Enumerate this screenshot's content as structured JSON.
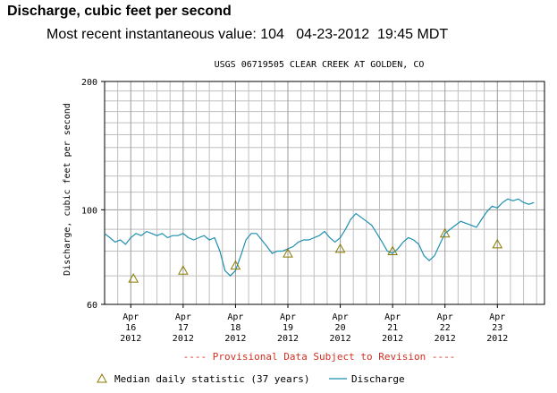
{
  "header": {
    "title": "Discharge, cubic feet per second",
    "subtitle": "Most recent instantaneous value: 104   04-23-2012  19:45 MDT"
  },
  "chart_data": {
    "type": "line",
    "title": "USGS 06719505 CLEAR CREEK AT GOLDEN, CO",
    "ylabel": "Discharge, cubic feet per second",
    "xlabel": "",
    "y_scale": "log",
    "ylim": [
      60,
      200
    ],
    "y_tick_labels": [
      "200",
      "100",
      "60"
    ],
    "y_ticks": [
      200,
      100,
      60
    ],
    "xlim_days": [
      15.5,
      23.9
    ],
    "x_tick_positions": [
      16,
      17,
      18,
      19,
      20,
      21,
      22,
      23
    ],
    "x_tick_labels": [
      [
        "Apr",
        "16",
        "2012"
      ],
      [
        "Apr",
        "17",
        "2012"
      ],
      [
        "Apr",
        "18",
        "2012"
      ],
      [
        "Apr",
        "19",
        "2012"
      ],
      [
        "Apr",
        "20",
        "2012"
      ],
      [
        "Apr",
        "21",
        "2012"
      ],
      [
        "Apr",
        "22",
        "2012"
      ],
      [
        "Apr",
        "23",
        "2012"
      ]
    ],
    "grid": true,
    "annotation": "---- Provisional Data Subject to Revision ----",
    "colors": {
      "discharge": "#1f8fb0",
      "median": "#8a7a00",
      "annotation": "#d03020",
      "grid": "#bfbfbf"
    },
    "series": [
      {
        "name": "Discharge",
        "kind": "line",
        "x": [
          15.5,
          15.6,
          15.7,
          15.8,
          15.9,
          16.0,
          16.1,
          16.2,
          16.3,
          16.4,
          16.5,
          16.6,
          16.7,
          16.8,
          16.9,
          17.0,
          17.1,
          17.2,
          17.3,
          17.4,
          17.5,
          17.6,
          17.7,
          17.8,
          17.9,
          18.0,
          18.1,
          18.2,
          18.3,
          18.4,
          18.5,
          18.6,
          18.7,
          18.8,
          18.9,
          19.0,
          19.1,
          19.2,
          19.3,
          19.4,
          19.5,
          19.6,
          19.7,
          19.8,
          19.9,
          20.0,
          20.1,
          20.2,
          20.3,
          20.4,
          20.5,
          20.6,
          20.7,
          20.8,
          20.9,
          21.0,
          21.1,
          21.2,
          21.3,
          21.4,
          21.5,
          21.6,
          21.7,
          21.8,
          21.9,
          22.0,
          22.1,
          22.2,
          22.3,
          22.4,
          22.5,
          22.6,
          22.7,
          22.8,
          22.9,
          23.0,
          23.1,
          23.2,
          23.3,
          23.4,
          23.5,
          23.6,
          23.7
        ],
        "values": [
          88,
          86,
          84,
          85,
          83,
          86,
          88,
          87,
          89,
          88,
          87,
          88,
          86,
          87,
          87,
          88,
          86,
          85,
          86,
          87,
          85,
          86,
          80,
          72,
          70,
          72,
          78,
          85,
          88,
          88,
          85,
          82,
          79,
          80,
          80,
          81,
          82,
          84,
          85,
          85,
          86,
          87,
          89,
          86,
          84,
          86,
          90,
          95,
          98,
          96,
          94,
          92,
          88,
          84,
          80,
          79,
          81,
          84,
          86,
          85,
          83,
          78,
          76,
          78,
          83,
          88,
          90,
          92,
          94,
          93,
          92,
          91,
          95,
          99,
          102,
          101,
          104,
          106,
          105,
          106,
          104,
          103,
          104
        ]
      },
      {
        "name": "Median daily statistic (37 years)",
        "kind": "marker",
        "marker": "triangle",
        "x": [
          16.05,
          17.0,
          18.0,
          19.0,
          20.0,
          21.0,
          22.0,
          23.0
        ],
        "values": [
          69,
          72,
          74,
          79,
          81,
          80,
          88,
          83
        ]
      }
    ],
    "legend": {
      "placement": "bottom",
      "items": [
        {
          "label": "Median daily statistic (37 years)",
          "symbol": "triangle"
        },
        {
          "label": "Discharge",
          "symbol": "line"
        }
      ]
    }
  }
}
